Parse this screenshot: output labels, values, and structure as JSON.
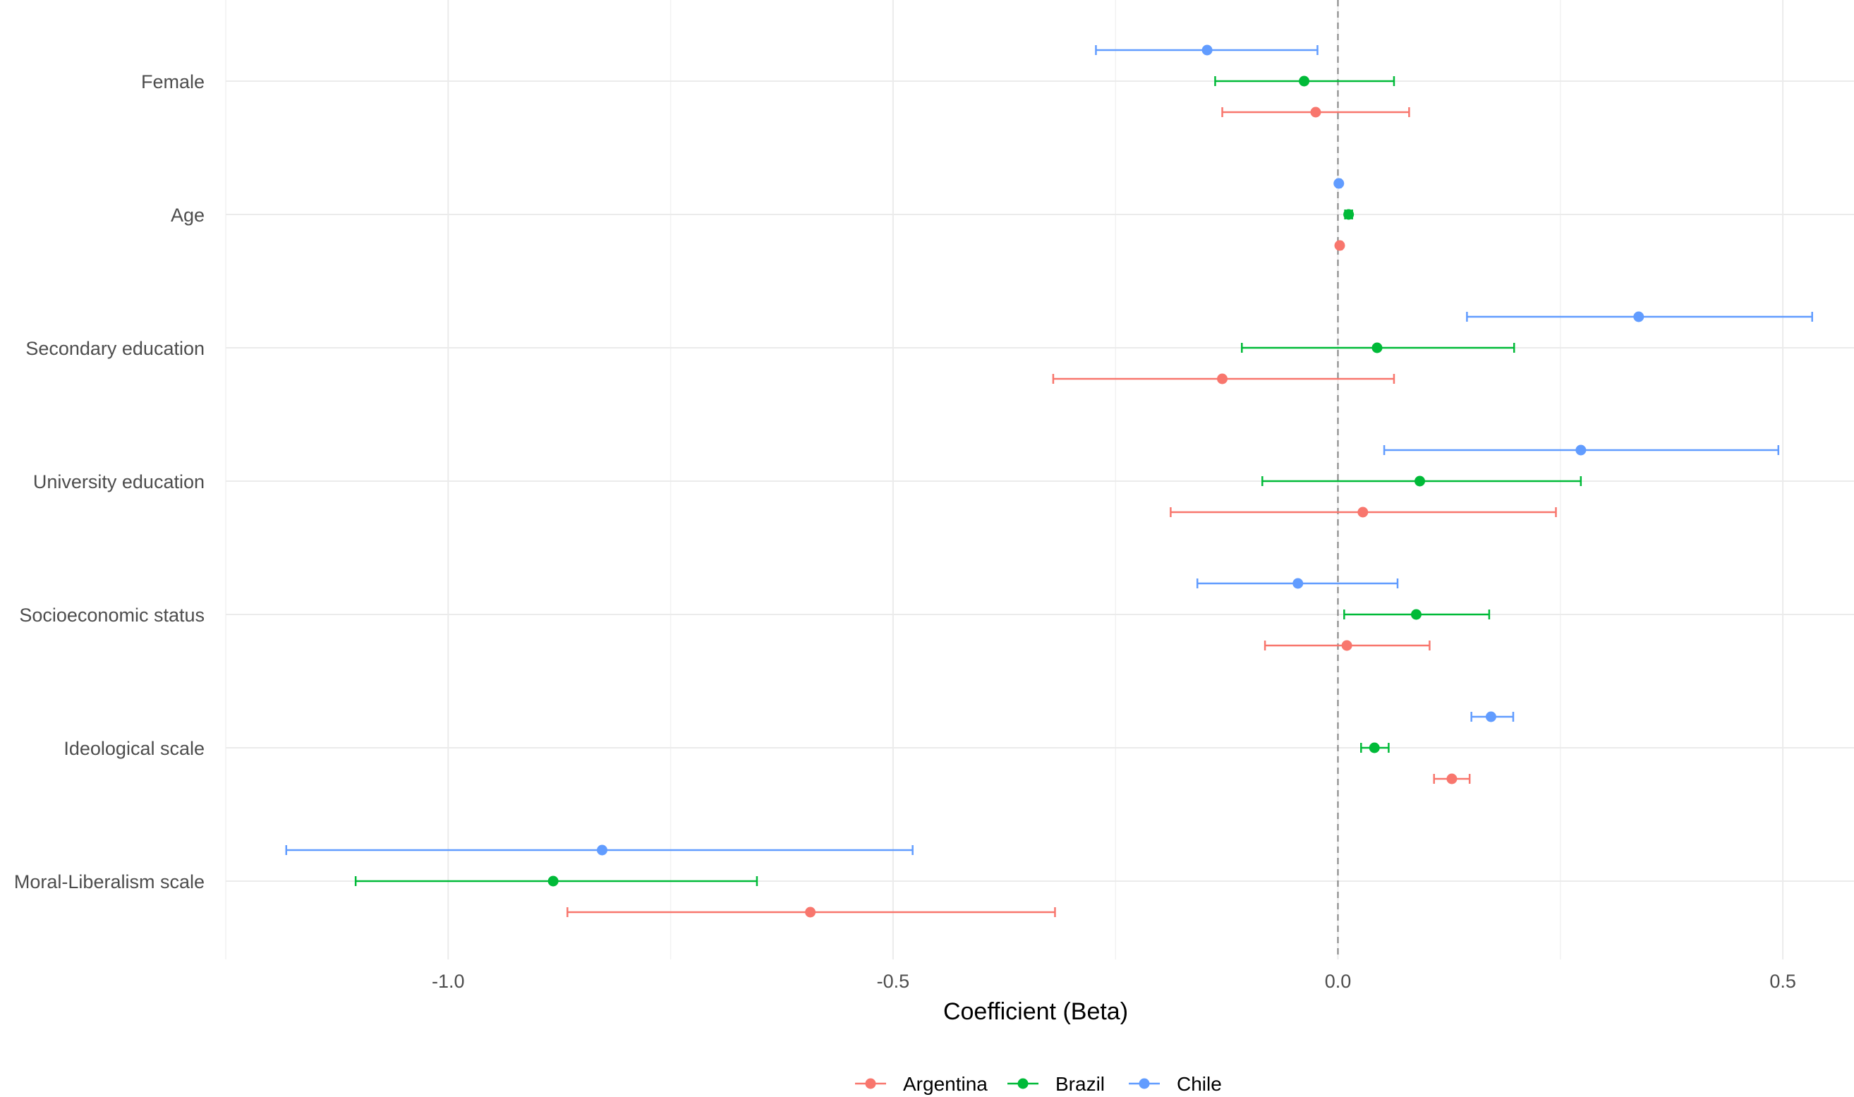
{
  "chart_data": {
    "type": "coefficient-plot",
    "xlabel": "Coefficient (Beta)",
    "xlim": [
      -1.25,
      0.58
    ],
    "xticks": [
      -1.0,
      -0.5,
      0.0,
      0.5
    ],
    "xtick_labels": [
      "-1.0",
      "-0.5",
      "0.0",
      "0.5"
    ],
    "reference_line": 0,
    "categories": [
      "Female",
      "Age",
      "Secondary education",
      "University education",
      "Socioeconomic status",
      "Ideological scale",
      "Moral-Liberalism scale"
    ],
    "series": [
      {
        "name": "Argentina",
        "color": "#F8766D",
        "points": [
          {
            "estimate": -0.025,
            "low": -0.13,
            "high": 0.08
          },
          {
            "estimate": 0.002,
            "low": 0.0,
            "high": 0.004
          },
          {
            "estimate": -0.13,
            "low": -0.32,
            "high": 0.063
          },
          {
            "estimate": 0.028,
            "low": -0.188,
            "high": 0.245
          },
          {
            "estimate": 0.01,
            "low": -0.082,
            "high": 0.103
          },
          {
            "estimate": 0.128,
            "low": 0.108,
            "high": 0.148
          },
          {
            "estimate": -0.593,
            "low": -0.866,
            "high": -0.318
          }
        ]
      },
      {
        "name": "Brazil",
        "color": "#00BA38",
        "points": [
          {
            "estimate": -0.038,
            "low": -0.138,
            "high": 0.063
          },
          {
            "estimate": 0.012,
            "low": 0.008,
            "high": 0.016
          },
          {
            "estimate": 0.044,
            "low": -0.108,
            "high": 0.198
          },
          {
            "estimate": 0.092,
            "low": -0.085,
            "high": 0.273
          },
          {
            "estimate": 0.088,
            "low": 0.007,
            "high": 0.17
          },
          {
            "estimate": 0.041,
            "low": 0.026,
            "high": 0.057
          },
          {
            "estimate": -0.882,
            "low": -1.104,
            "high": -0.653
          }
        ]
      },
      {
        "name": "Chile",
        "color": "#619CFF",
        "points": [
          {
            "estimate": -0.147,
            "low": -0.272,
            "high": -0.023
          },
          {
            "estimate": 0.001,
            "low": -0.001,
            "high": 0.003
          },
          {
            "estimate": 0.338,
            "low": 0.145,
            "high": 0.533
          },
          {
            "estimate": 0.273,
            "low": 0.052,
            "high": 0.495
          },
          {
            "estimate": -0.045,
            "low": -0.158,
            "high": 0.067
          },
          {
            "estimate": 0.172,
            "low": 0.15,
            "high": 0.197
          },
          {
            "estimate": -0.827,
            "low": -1.182,
            "high": -0.478
          }
        ]
      }
    ],
    "legend": {
      "position": "bottom",
      "labels": [
        "Argentina",
        "Brazil",
        "Chile"
      ]
    }
  }
}
